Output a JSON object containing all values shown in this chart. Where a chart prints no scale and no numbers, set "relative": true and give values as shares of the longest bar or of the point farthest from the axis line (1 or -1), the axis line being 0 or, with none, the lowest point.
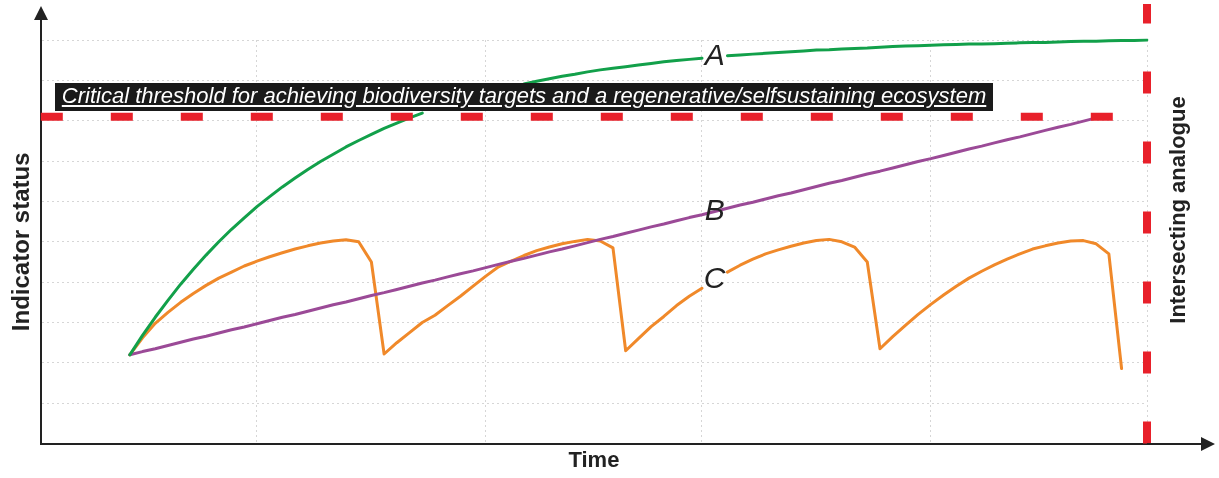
{
  "chart_data": {
    "type": "line",
    "relative": true,
    "xlabel": "Time",
    "ylabel": "Indicator status",
    "grid": true,
    "legend": false,
    "marker": "none",
    "line_style": "solid",
    "categories": [
      null,
      null,
      null,
      null,
      null,
      null,
      null,
      null,
      null,
      null,
      null,
      null,
      null,
      null,
      null,
      null,
      null,
      null,
      null,
      null,
      null,
      null,
      null,
      null,
      null,
      null,
      null,
      null,
      null,
      null,
      null,
      null,
      null,
      null,
      null,
      null,
      null,
      null,
      null,
      null,
      null,
      null,
      null,
      null,
      null,
      null,
      null,
      null,
      null,
      null,
      null,
      null,
      null,
      null,
      null,
      null,
      null,
      null,
      null,
      null,
      null,
      null,
      null,
      null,
      null,
      null,
      null,
      null,
      null,
      null,
      null,
      null,
      null,
      null,
      null,
      null,
      null,
      null,
      null,
      null,
      null,
      null,
      null,
      null,
      null,
      null,
      null,
      null
    ],
    "series": [
      {
        "name": "A",
        "color": "#12a04a",
        "values": [
          null,
          null,
          null,
          null,
          null,
          null,
          null,
          0.22,
          0.268,
          0.313,
          0.355,
          0.395,
          0.432,
          0.467,
          0.5,
          0.531,
          0.559,
          0.587,
          0.612,
          0.636,
          0.658,
          0.679,
          0.699,
          0.717,
          0.735,
          0.751,
          0.766,
          0.781,
          0.794,
          0.807,
          0.819,
          null,
          null,
          null,
          null,
          null,
          null,
          null,
          0.891,
          0.898,
          0.904,
          0.91,
          0.915,
          0.921,
          0.926,
          0.93,
          0.934,
          0.938,
          0.942,
          0.946,
          0.949,
          0.952,
          0.955,
          null,
          0.961,
          0.963,
          0.965,
          0.967,
          0.969,
          0.971,
          0.973,
          0.975,
          0.976,
          0.978,
          0.979,
          0.98,
          0.982,
          0.984,
          0.985,
          0.986,
          0.987,
          0.988,
          0.989,
          0.99,
          0.99,
          0.991,
          0.992,
          0.993,
          0.994,
          0.994,
          0.995,
          0.996,
          0.997,
          0.997,
          0.998,
          0.999,
          0.999,
          1.0
        ]
      },
      {
        "name": "B",
        "color": "#9b4a97",
        "values": [
          null,
          null,
          null,
          null,
          null,
          null,
          null,
          0.22,
          0.228,
          0.235,
          0.243,
          0.251,
          0.259,
          0.266,
          0.274,
          0.282,
          0.289,
          0.297,
          0.305,
          0.313,
          0.32,
          0.328,
          0.336,
          0.344,
          0.351,
          0.359,
          0.367,
          0.374,
          0.382,
          0.39,
          0.398,
          0.405,
          0.413,
          0.421,
          0.428,
          0.436,
          0.444,
          0.452,
          0.459,
          0.467,
          0.475,
          0.482,
          0.49,
          0.498,
          0.506,
          0.513,
          0.521,
          0.529,
          0.537,
          0.544,
          0.552,
          0.56,
          0.567,
          0.575,
          0.583,
          0.591,
          0.598,
          0.606,
          0.614,
          0.621,
          0.629,
          0.637,
          0.645,
          0.652,
          0.66,
          0.668,
          0.675,
          0.683,
          0.691,
          0.699,
          0.706,
          0.714,
          0.722,
          0.73,
          0.737,
          0.745,
          0.753,
          0.76,
          0.768,
          0.776,
          0.784,
          0.791,
          0.799,
          0.807,
          0.814,
          null,
          null,
          null
        ]
      },
      {
        "name": "C",
        "color": "#f0892a",
        "values": [
          null,
          null,
          null,
          null,
          null,
          null,
          null,
          0.22,
          0.262,
          0.298,
          0.325,
          0.35,
          0.372,
          0.392,
          0.41,
          0.425,
          0.44,
          0.452,
          0.463,
          0.473,
          0.482,
          0.49,
          0.497,
          0.502,
          0.505,
          0.5,
          0.45,
          0.222,
          0.25,
          0.275,
          0.3,
          0.318,
          0.342,
          0.365,
          0.39,
          0.415,
          0.438,
          0.452,
          0.466,
          0.478,
          0.487,
          0.495,
          0.501,
          0.506,
          0.502,
          0.485,
          0.23,
          0.26,
          0.29,
          0.315,
          0.342,
          0.365,
          0.385,
          null,
          0.425,
          0.442,
          0.457,
          0.47,
          0.48,
          0.489,
          0.497,
          0.503,
          0.506,
          0.5,
          0.487,
          0.45,
          0.235,
          0.265,
          0.293,
          0.32,
          0.345,
          0.368,
          0.39,
          0.41,
          0.427,
          0.443,
          0.457,
          0.47,
          0.482,
          0.49,
          0.497,
          0.502,
          0.503,
          0.495,
          0.47,
          0.186,
          null,
          null
        ]
      }
    ],
    "ref_lines": [
      {
        "axis": "y",
        "value": 0.81,
        "label": "Critical threshold for achieving biodiversity targets and a regenerative/selfsustaining ecosystem",
        "color": "#e8202a",
        "line_style": "dashed"
      },
      {
        "axis": "x",
        "label": "Intersecting analogue",
        "color": "#e8202a",
        "line_style": "dashed"
      }
    ]
  }
}
